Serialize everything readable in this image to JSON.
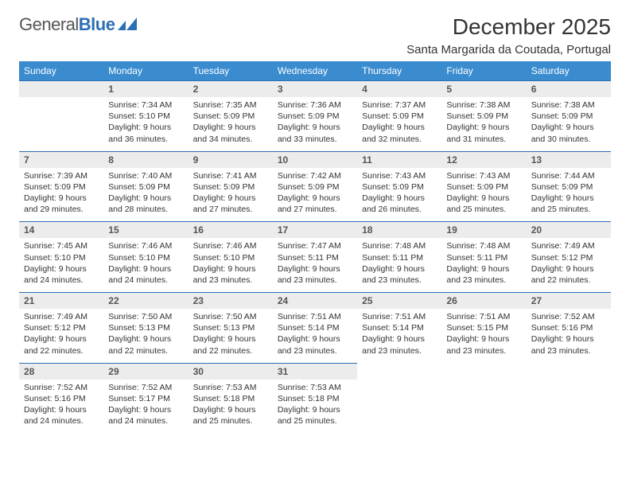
{
  "brand": {
    "name_gray": "General",
    "name_blue": "Blue"
  },
  "title": "December 2025",
  "location": "Santa Margarida da Coutada, Portugal",
  "colors": {
    "header_bg": "#3a8ccf",
    "rule": "#2c6fb5",
    "daynum_bg": "#ececec",
    "text": "#333333"
  },
  "day_headers": [
    "Sunday",
    "Monday",
    "Tuesday",
    "Wednesday",
    "Thursday",
    "Friday",
    "Saturday"
  ],
  "weeks": [
    [
      null,
      {
        "n": "1",
        "sr": "7:34 AM",
        "ss": "5:10 PM",
        "dl1": "Daylight: 9 hours",
        "dl2": "and 36 minutes."
      },
      {
        "n": "2",
        "sr": "7:35 AM",
        "ss": "5:09 PM",
        "dl1": "Daylight: 9 hours",
        "dl2": "and 34 minutes."
      },
      {
        "n": "3",
        "sr": "7:36 AM",
        "ss": "5:09 PM",
        "dl1": "Daylight: 9 hours",
        "dl2": "and 33 minutes."
      },
      {
        "n": "4",
        "sr": "7:37 AM",
        "ss": "5:09 PM",
        "dl1": "Daylight: 9 hours",
        "dl2": "and 32 minutes."
      },
      {
        "n": "5",
        "sr": "7:38 AM",
        "ss": "5:09 PM",
        "dl1": "Daylight: 9 hours",
        "dl2": "and 31 minutes."
      },
      {
        "n": "6",
        "sr": "7:38 AM",
        "ss": "5:09 PM",
        "dl1": "Daylight: 9 hours",
        "dl2": "and 30 minutes."
      }
    ],
    [
      {
        "n": "7",
        "sr": "7:39 AM",
        "ss": "5:09 PM",
        "dl1": "Daylight: 9 hours",
        "dl2": "and 29 minutes."
      },
      {
        "n": "8",
        "sr": "7:40 AM",
        "ss": "5:09 PM",
        "dl1": "Daylight: 9 hours",
        "dl2": "and 28 minutes."
      },
      {
        "n": "9",
        "sr": "7:41 AM",
        "ss": "5:09 PM",
        "dl1": "Daylight: 9 hours",
        "dl2": "and 27 minutes."
      },
      {
        "n": "10",
        "sr": "7:42 AM",
        "ss": "5:09 PM",
        "dl1": "Daylight: 9 hours",
        "dl2": "and 27 minutes."
      },
      {
        "n": "11",
        "sr": "7:43 AM",
        "ss": "5:09 PM",
        "dl1": "Daylight: 9 hours",
        "dl2": "and 26 minutes."
      },
      {
        "n": "12",
        "sr": "7:43 AM",
        "ss": "5:09 PM",
        "dl1": "Daylight: 9 hours",
        "dl2": "and 25 minutes."
      },
      {
        "n": "13",
        "sr": "7:44 AM",
        "ss": "5:09 PM",
        "dl1": "Daylight: 9 hours",
        "dl2": "and 25 minutes."
      }
    ],
    [
      {
        "n": "14",
        "sr": "7:45 AM",
        "ss": "5:10 PM",
        "dl1": "Daylight: 9 hours",
        "dl2": "and 24 minutes."
      },
      {
        "n": "15",
        "sr": "7:46 AM",
        "ss": "5:10 PM",
        "dl1": "Daylight: 9 hours",
        "dl2": "and 24 minutes."
      },
      {
        "n": "16",
        "sr": "7:46 AM",
        "ss": "5:10 PM",
        "dl1": "Daylight: 9 hours",
        "dl2": "and 23 minutes."
      },
      {
        "n": "17",
        "sr": "7:47 AM",
        "ss": "5:11 PM",
        "dl1": "Daylight: 9 hours",
        "dl2": "and 23 minutes."
      },
      {
        "n": "18",
        "sr": "7:48 AM",
        "ss": "5:11 PM",
        "dl1": "Daylight: 9 hours",
        "dl2": "and 23 minutes."
      },
      {
        "n": "19",
        "sr": "7:48 AM",
        "ss": "5:11 PM",
        "dl1": "Daylight: 9 hours",
        "dl2": "and 23 minutes."
      },
      {
        "n": "20",
        "sr": "7:49 AM",
        "ss": "5:12 PM",
        "dl1": "Daylight: 9 hours",
        "dl2": "and 22 minutes."
      }
    ],
    [
      {
        "n": "21",
        "sr": "7:49 AM",
        "ss": "5:12 PM",
        "dl1": "Daylight: 9 hours",
        "dl2": "and 22 minutes."
      },
      {
        "n": "22",
        "sr": "7:50 AM",
        "ss": "5:13 PM",
        "dl1": "Daylight: 9 hours",
        "dl2": "and 22 minutes."
      },
      {
        "n": "23",
        "sr": "7:50 AM",
        "ss": "5:13 PM",
        "dl1": "Daylight: 9 hours",
        "dl2": "and 22 minutes."
      },
      {
        "n": "24",
        "sr": "7:51 AM",
        "ss": "5:14 PM",
        "dl1": "Daylight: 9 hours",
        "dl2": "and 23 minutes."
      },
      {
        "n": "25",
        "sr": "7:51 AM",
        "ss": "5:14 PM",
        "dl1": "Daylight: 9 hours",
        "dl2": "and 23 minutes."
      },
      {
        "n": "26",
        "sr": "7:51 AM",
        "ss": "5:15 PM",
        "dl1": "Daylight: 9 hours",
        "dl2": "and 23 minutes."
      },
      {
        "n": "27",
        "sr": "7:52 AM",
        "ss": "5:16 PM",
        "dl1": "Daylight: 9 hours",
        "dl2": "and 23 minutes."
      }
    ],
    [
      {
        "n": "28",
        "sr": "7:52 AM",
        "ss": "5:16 PM",
        "dl1": "Daylight: 9 hours",
        "dl2": "and 24 minutes."
      },
      {
        "n": "29",
        "sr": "7:52 AM",
        "ss": "5:17 PM",
        "dl1": "Daylight: 9 hours",
        "dl2": "and 24 minutes."
      },
      {
        "n": "30",
        "sr": "7:53 AM",
        "ss": "5:18 PM",
        "dl1": "Daylight: 9 hours",
        "dl2": "and 25 minutes."
      },
      {
        "n": "31",
        "sr": "7:53 AM",
        "ss": "5:18 PM",
        "dl1": "Daylight: 9 hours",
        "dl2": "and 25 minutes."
      },
      null,
      null,
      null
    ]
  ],
  "labels": {
    "sunrise_prefix": "Sunrise: ",
    "sunset_prefix": "Sunset: "
  }
}
